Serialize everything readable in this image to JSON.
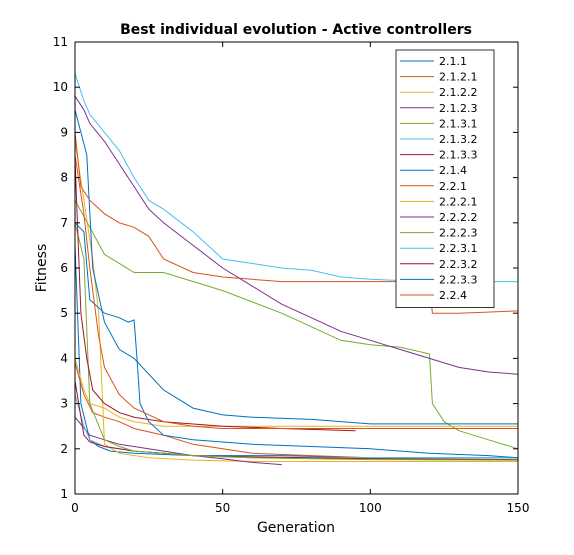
{
  "chart_data": {
    "type": "line",
    "title": "Best individual evolution - Active controllers",
    "xlabel": "Generation",
    "ylabel": "Fitness",
    "xlim": [
      0,
      150
    ],
    "ylim": [
      1,
      11
    ],
    "xticks": [
      0,
      50,
      100,
      150
    ],
    "yticks": [
      1,
      2,
      3,
      4,
      5,
      6,
      7,
      8,
      9,
      10,
      11
    ],
    "grid": false,
    "legend_position": "top-right",
    "series": [
      {
        "name": "2.1.1",
        "color": "#0072BD",
        "x": [
          0,
          2,
          5,
          8,
          12,
          20,
          40,
          70,
          100,
          150
        ],
        "y": [
          6.5,
          3.0,
          2.2,
          2.05,
          1.95,
          1.9,
          1.85,
          1.85,
          1.8,
          1.8
        ]
      },
      {
        "name": "2.1.2.1",
        "color": "#D95319",
        "x": [
          0,
          3,
          6,
          10,
          15,
          20,
          30,
          40,
          60,
          80,
          100
        ],
        "y": [
          3.9,
          3.2,
          2.8,
          2.7,
          2.6,
          2.45,
          2.3,
          2.1,
          1.9,
          1.85,
          1.8
        ]
      },
      {
        "name": "2.1.2.2",
        "color": "#EDB120",
        "x": [
          0,
          3,
          6,
          8,
          10,
          15,
          25,
          40,
          60,
          80,
          100,
          150
        ],
        "y": [
          8.8,
          7.5,
          6.2,
          5.0,
          2.1,
          1.9,
          1.8,
          1.75,
          1.72,
          1.72,
          1.72,
          1.72
        ]
      },
      {
        "name": "2.1.2.3",
        "color": "#7E2F8E",
        "x": [
          0,
          5,
          10,
          15,
          20,
          30,
          40,
          50,
          55,
          60,
          70
        ],
        "y": [
          2.7,
          2.3,
          2.2,
          2.1,
          2.05,
          1.95,
          1.85,
          1.78,
          1.74,
          1.7,
          1.65
        ]
      },
      {
        "name": "2.1.3.1",
        "color": "#77AC30",
        "x": [
          0,
          5,
          10,
          20,
          30,
          50,
          70,
          90,
          100,
          110,
          120,
          121,
          125,
          130,
          140,
          150
        ],
        "y": [
          7.5,
          6.9,
          6.3,
          5.9,
          5.9,
          5.5,
          5.0,
          4.4,
          4.3,
          4.25,
          4.1,
          3.0,
          2.6,
          2.4,
          2.2,
          2.0
        ]
      },
      {
        "name": "2.1.3.2",
        "color": "#4DBEEE",
        "x": [
          0,
          3,
          5,
          10,
          20,
          30,
          40,
          50,
          60,
          80,
          100,
          150
        ],
        "y": [
          3.2,
          2.5,
          2.2,
          2.05,
          1.95,
          1.9,
          1.85,
          1.82,
          1.8,
          1.8,
          1.8,
          1.8
        ]
      },
      {
        "name": "2.1.3.3",
        "color": "#A2142F",
        "x": [
          0,
          3,
          5,
          10,
          20,
          30,
          40,
          60,
          80,
          100,
          150
        ],
        "y": [
          3.5,
          2.3,
          2.15,
          2.05,
          1.95,
          1.9,
          1.85,
          1.82,
          1.8,
          1.78,
          1.76
        ]
      },
      {
        "name": "2.1.4",
        "color": "#0072BD",
        "x": [
          0,
          2,
          4,
          6,
          10,
          15,
          20,
          30,
          40,
          50,
          60,
          80,
          100,
          120,
          150
        ],
        "y": [
          9.5,
          9.0,
          8.5,
          6.0,
          4.8,
          4.2,
          4.0,
          3.3,
          2.9,
          2.75,
          2.7,
          2.65,
          2.55,
          2.55,
          2.55
        ]
      },
      {
        "name": "2.2.1",
        "color": "#D95319",
        "x": [
          0,
          2,
          5,
          10,
          15,
          20,
          25,
          30,
          40,
          50,
          60,
          70,
          80,
          100,
          115,
          120,
          121,
          130,
          150
        ],
        "y": [
          9.0,
          7.8,
          7.5,
          7.2,
          7.0,
          6.9,
          6.7,
          6.2,
          5.9,
          5.8,
          5.75,
          5.7,
          5.7,
          5.7,
          5.7,
          5.65,
          5.0,
          5.0,
          5.05
        ]
      },
      {
        "name": "2.2.2.1",
        "color": "#EDB120",
        "x": [
          0,
          3,
          5,
          10,
          15,
          20,
          30,
          50,
          80,
          100,
          130,
          150
        ],
        "y": [
          4.0,
          3.3,
          3.0,
          2.9,
          2.7,
          2.6,
          2.5,
          2.5,
          2.5,
          2.5,
          2.5,
          2.5
        ]
      },
      {
        "name": "2.2.2.2",
        "color": "#7E2F8E",
        "x": [
          0,
          3,
          5,
          10,
          15,
          20,
          25,
          30,
          40,
          50,
          60,
          70,
          80,
          90,
          100,
          110,
          120,
          130,
          140,
          150
        ],
        "y": [
          9.8,
          9.5,
          9.2,
          8.8,
          8.3,
          7.8,
          7.3,
          7.0,
          6.5,
          6.0,
          5.6,
          5.2,
          4.9,
          4.6,
          4.4,
          4.2,
          4.0,
          3.8,
          3.7,
          3.65
        ]
      },
      {
        "name": "2.2.2.3",
        "color": "#77AC30",
        "x": [
          0,
          3,
          5,
          10,
          15,
          20,
          30,
          40,
          60,
          80,
          100,
          150
        ],
        "y": [
          7.0,
          6.2,
          3.0,
          2.2,
          2.05,
          1.95,
          1.9,
          1.85,
          1.8,
          1.78,
          1.76,
          1.75
        ]
      },
      {
        "name": "2.2.3.1",
        "color": "#4DBEEE",
        "x": [
          0,
          3,
          5,
          10,
          15,
          20,
          25,
          30,
          40,
          50,
          60,
          70,
          80,
          90,
          100,
          120,
          150
        ],
        "y": [
          10.3,
          9.7,
          9.4,
          9.0,
          8.6,
          8.0,
          7.5,
          7.3,
          6.8,
          6.2,
          6.1,
          6.0,
          5.95,
          5.8,
          5.75,
          5.7,
          5.7
        ]
      },
      {
        "name": "2.2.3.2",
        "color": "#A2142F",
        "x": [
          0,
          2,
          4,
          6,
          10,
          15,
          20,
          30,
          50,
          70,
          95
        ],
        "y": [
          8.4,
          5.0,
          4.0,
          3.3,
          3.0,
          2.8,
          2.7,
          2.6,
          2.5,
          2.45,
          2.4
        ]
      },
      {
        "name": "2.2.3.3",
        "color": "#0072BD",
        "x": [
          0,
          3,
          5,
          10,
          15,
          18,
          20,
          21,
          22,
          25,
          30,
          40,
          60,
          80,
          100,
          120,
          140,
          150
        ],
        "y": [
          7.0,
          6.8,
          5.3,
          5.0,
          4.9,
          4.8,
          4.85,
          4.0,
          3.0,
          2.6,
          2.3,
          2.2,
          2.1,
          2.05,
          2.0,
          1.9,
          1.85,
          1.8
        ]
      },
      {
        "name": "2.2.4",
        "color": "#D95319",
        "x": [
          0,
          3,
          5,
          8,
          10,
          15,
          20,
          30,
          40,
          50,
          60,
          80,
          100,
          120,
          150
        ],
        "y": [
          8.5,
          7.2,
          6.0,
          4.5,
          3.8,
          3.2,
          2.9,
          2.6,
          2.5,
          2.45,
          2.45,
          2.45,
          2.45,
          2.45,
          2.45
        ]
      }
    ]
  }
}
